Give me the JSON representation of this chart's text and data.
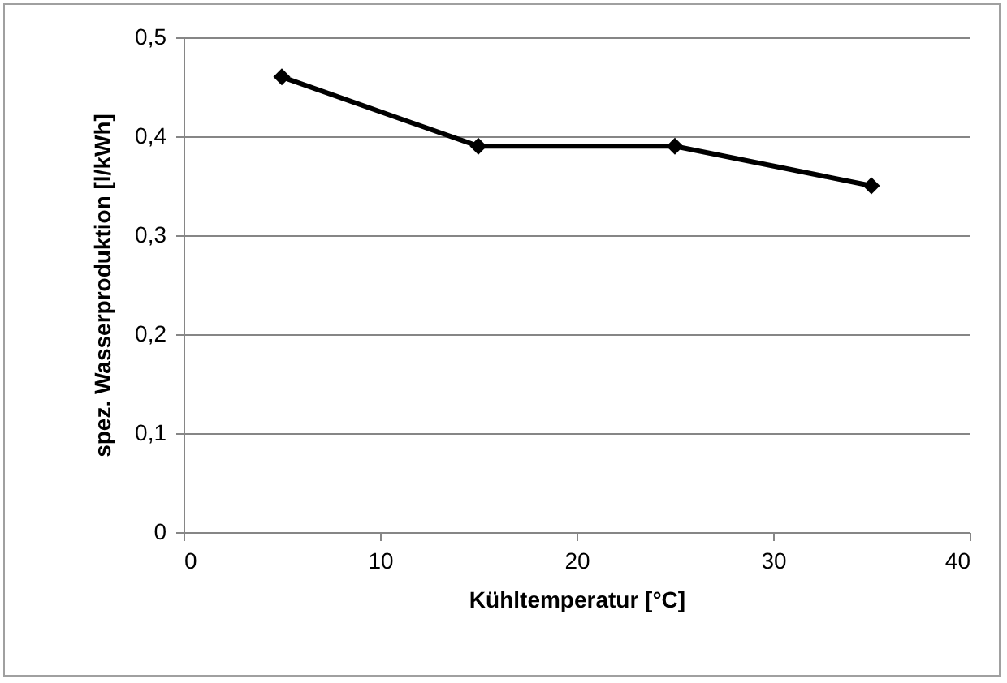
{
  "chart_data": {
    "type": "line",
    "xlabel": "Kühltemperatur [°C]",
    "ylabel": "spez. Wasserproduktion [l/kWh]",
    "x": [
      5,
      15,
      25,
      35
    ],
    "series": [
      {
        "color": "#000000",
        "values": [
          0.46,
          0.39,
          0.39,
          0.35
        ]
      }
    ],
    "xlim": [
      0,
      40
    ],
    "xticks": [
      0,
      10,
      20,
      30,
      40
    ],
    "ylim": [
      0,
      0.5
    ],
    "yticks": [
      {
        "value": 0,
        "label": "0"
      },
      {
        "value": 0.1,
        "label": "0,1"
      },
      {
        "value": 0.2,
        "label": "0,2"
      },
      {
        "value": 0.3,
        "label": "0,3"
      },
      {
        "value": 0.4,
        "label": "0,4"
      },
      {
        "value": 0.5,
        "label": "0,5"
      }
    ],
    "grid": "y",
    "marker": "diamond",
    "line_style": "solid",
    "legend": false
  }
}
